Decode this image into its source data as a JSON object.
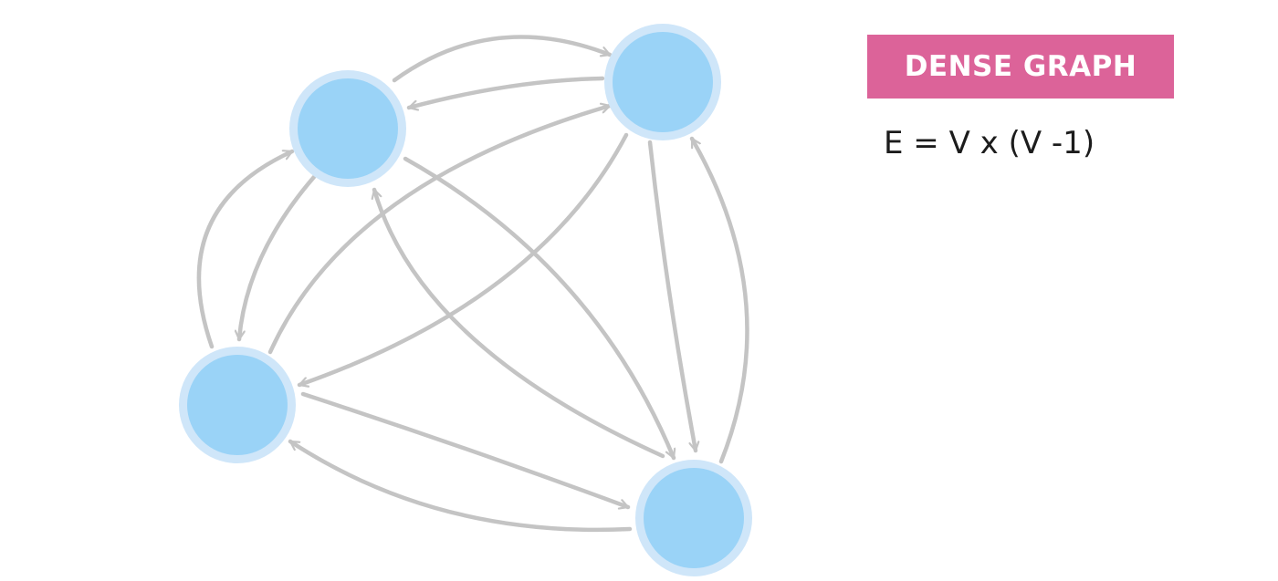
{
  "title_badge": {
    "label": "DENSE GRAPH"
  },
  "formula": {
    "text": "E = V x (V -1)"
  },
  "graph": {
    "type": "directed-complete",
    "node_ids": [
      "n1",
      "n2",
      "n3",
      "n4"
    ],
    "edges": [
      {
        "from": "n1",
        "to": "n2"
      },
      {
        "from": "n2",
        "to": "n1"
      },
      {
        "from": "n1",
        "to": "n3"
      },
      {
        "from": "n3",
        "to": "n1"
      },
      {
        "from": "n1",
        "to": "n4"
      },
      {
        "from": "n4",
        "to": "n1"
      },
      {
        "from": "n2",
        "to": "n3"
      },
      {
        "from": "n3",
        "to": "n2"
      },
      {
        "from": "n2",
        "to": "n4"
      },
      {
        "from": "n4",
        "to": "n2"
      },
      {
        "from": "n3",
        "to": "n4"
      },
      {
        "from": "n4",
        "to": "n3"
      }
    ]
  },
  "colors": {
    "node_fill": "#9ad3f7",
    "node_ring": "#cfe6f9",
    "edge": "#c4c4c4",
    "badge_bg": "#dc6399",
    "badge_text": "#ffffff",
    "formula_text": "#1c1c1c"
  }
}
